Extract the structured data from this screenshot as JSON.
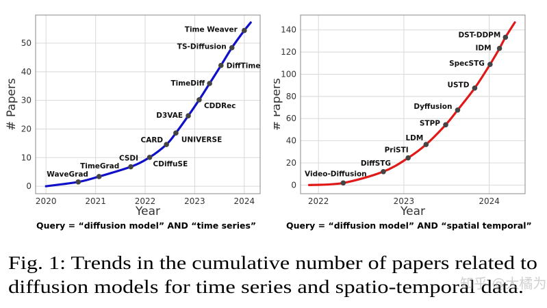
{
  "chart_data": [
    {
      "type": "line",
      "xlabel": "Year",
      "ylabel": "# Papers",
      "query": "Query = “diffusion model” AND “time series”",
      "xlim": [
        2019.79,
        2024.32
      ],
      "ylim": [
        -2.6,
        59.8
      ],
      "xticks": [
        2020,
        2021,
        2022,
        2023,
        2024
      ],
      "yticks": [
        0,
        10,
        20,
        30,
        40,
        50
      ],
      "grid": true,
      "line_color": "#1010c8",
      "marker_color": "#444444",
      "curve_start": {
        "x": 2020.0,
        "y": 0
      },
      "curve_end": {
        "x": 2024.13,
        "y": 57.2
      },
      "points": [
        {
          "label": "WaveGrad",
          "x": 2020.65,
          "y": 1.5
        },
        {
          "label": "TimeGrad",
          "x": 2021.07,
          "y": 3.4
        },
        {
          "label": "CSDI",
          "x": 2021.71,
          "y": 6.8
        },
        {
          "label": "CDiffuSE",
          "x": 2022.09,
          "y": 10.1
        },
        {
          "label": "CARD",
          "x": 2022.43,
          "y": 14.6
        },
        {
          "label": "UNIVERSE",
          "x": 2022.62,
          "y": 18.6
        },
        {
          "label": "D3VAE",
          "x": 2022.87,
          "y": 24.6
        },
        {
          "label": "CDDRec",
          "x": 2023.09,
          "y": 30.2
        },
        {
          "label": "TimeDiff",
          "x": 2023.3,
          "y": 35.9
        },
        {
          "label": "DiffTime",
          "x": 2023.53,
          "y": 42.2
        },
        {
          "label": "TS-Diffusion",
          "x": 2023.75,
          "y": 48.4
        },
        {
          "label": "Time Weaver",
          "x": 2024.0,
          "y": 54.4
        }
      ]
    },
    {
      "type": "line",
      "xlabel": "Year",
      "ylabel": "# Papers",
      "query": "Query = “diffusion model” AND “spatial temporal”",
      "xlim": [
        2021.79,
        2024.42
      ],
      "ylim": [
        -7.8,
        153.4
      ],
      "xticks": [
        2022,
        2023,
        2024
      ],
      "yticks": [
        0,
        20,
        40,
        60,
        80,
        100,
        120,
        140
      ],
      "grid": true,
      "line_color": "#e01818",
      "marker_color": "#444444",
      "curve_start": {
        "x": 2021.89,
        "y": 0
      },
      "curve_end": {
        "x": 2024.3,
        "y": 146.8
      },
      "points": [
        {
          "label": "Video-Diffusion",
          "x": 2022.29,
          "y": 1.9
        },
        {
          "label": "DiffSTG",
          "x": 2022.76,
          "y": 12.1
        },
        {
          "label": "PriSTI",
          "x": 2023.05,
          "y": 24.5
        },
        {
          "label": "LDM",
          "x": 2023.26,
          "y": 36.6
        },
        {
          "label": "STPP",
          "x": 2023.49,
          "y": 54.4
        },
        {
          "label": "Dyffusion",
          "x": 2023.63,
          "y": 67.7
        },
        {
          "label": "USTD",
          "x": 2023.83,
          "y": 87.5
        },
        {
          "label": "SpecSTG",
          "x": 2024.01,
          "y": 108.9
        },
        {
          "label": "IDM",
          "x": 2024.12,
          "y": 123.3
        },
        {
          "label": "DST-DDPM",
          "x": 2024.19,
          "y": 133.4
        }
      ]
    }
  ],
  "caption": {
    "line1": "Fig. 1: Trends in the cumulative number of papers related to",
    "line2": "diffusion models for time series and spatio-temporal data."
  },
  "watermark": "知乎 @大橘为重"
}
